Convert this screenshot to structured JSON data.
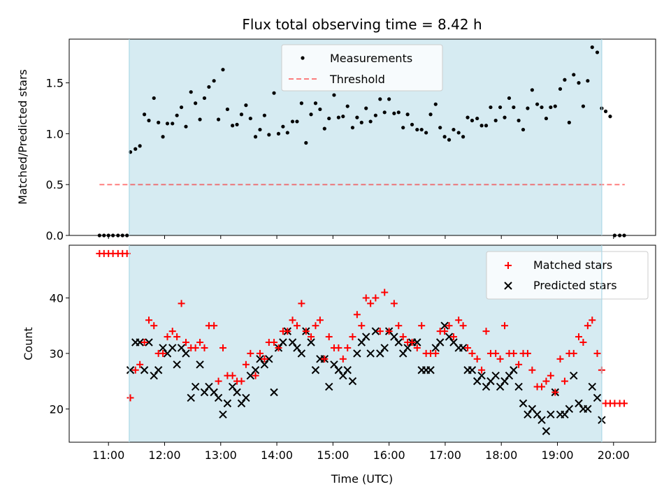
{
  "chart_data": [
    {
      "type": "scatter",
      "title": "Flux total observing time = 8.42 h",
      "ylabel": "Matched/Predicted stars",
      "xlabel": "",
      "xlim_hours": [
        10.3,
        20.75
      ],
      "ylim": [
        0,
        1.93
      ],
      "yticks": [
        0.0,
        0.5,
        1.0,
        1.5
      ],
      "ytick_labels": [
        "0.0",
        "0.5",
        "1.0",
        "1.5"
      ],
      "grid": false,
      "legend_position": "upper center",
      "observing_window_hours": [
        11.37,
        19.79
      ],
      "colors": {
        "window": "#add8e6",
        "measurements": "#000000",
        "threshold": "#ff0000"
      },
      "series": [
        {
          "name": "Measurements",
          "marker": "dot",
          "x_hours": [
            10.84,
            10.92,
            11.0,
            11.08,
            11.17,
            11.25,
            11.33,
            11.39,
            11.48,
            11.56,
            11.64,
            11.72,
            11.81,
            11.89,
            11.97,
            12.05,
            12.14,
            12.22,
            12.3,
            12.38,
            12.47,
            12.55,
            12.63,
            12.71,
            12.79,
            12.88,
            12.96,
            13.04,
            13.12,
            13.21,
            13.29,
            13.37,
            13.45,
            13.53,
            13.62,
            13.7,
            13.78,
            13.86,
            13.95,
            14.03,
            14.11,
            14.19,
            14.28,
            14.36,
            14.44,
            14.52,
            14.61,
            14.69,
            14.77,
            14.85,
            14.93,
            15.02,
            15.1,
            15.18,
            15.26,
            15.35,
            15.43,
            15.51,
            15.59,
            15.67,
            15.76,
            15.84,
            15.92,
            16.0,
            16.09,
            16.17,
            16.25,
            16.33,
            16.41,
            16.5,
            16.58,
            16.66,
            16.74,
            16.83,
            16.91,
            16.99,
            17.07,
            17.15,
            17.24,
            17.32,
            17.4,
            17.48,
            17.57,
            17.65,
            17.73,
            17.81,
            17.9,
            17.98,
            18.06,
            18.14,
            18.22,
            18.31,
            18.39,
            18.47,
            18.55,
            18.64,
            18.72,
            18.8,
            18.88,
            18.96,
            19.05,
            19.13,
            19.21,
            19.29,
            19.38,
            19.46,
            19.54,
            19.62,
            19.71,
            19.79,
            19.86,
            19.94,
            20.02,
            20.11,
            20.19
          ],
          "y": [
            0.0,
            0.0,
            0.0,
            0.0,
            0.0,
            0.0,
            0.0,
            0.82,
            0.85,
            0.88,
            1.19,
            1.13,
            1.35,
            1.11,
            0.97,
            1.1,
            1.1,
            1.18,
            1.26,
            1.07,
            1.41,
            1.3,
            1.14,
            1.35,
            1.46,
            1.52,
            1.14,
            1.63,
            1.24,
            1.08,
            1.09,
            1.19,
            1.28,
            1.15,
            0.97,
            1.04,
            1.18,
            0.99,
            1.4,
            1.0,
            1.07,
            1.01,
            1.12,
            1.12,
            1.3,
            0.91,
            1.19,
            1.3,
            1.24,
            1.05,
            1.15,
            1.38,
            1.16,
            1.17,
            1.27,
            1.06,
            1.16,
            1.11,
            1.25,
            1.12,
            1.18,
            1.34,
            1.21,
            1.34,
            1.2,
            1.21,
            1.06,
            1.19,
            1.09,
            1.04,
            1.04,
            1.01,
            1.19,
            1.29,
            1.06,
            0.97,
            0.94,
            1.04,
            1.01,
            0.97,
            1.16,
            1.13,
            1.15,
            1.08,
            1.08,
            1.26,
            1.13,
            1.26,
            1.16,
            1.35,
            1.26,
            1.13,
            1.04,
            1.25,
            1.43,
            1.29,
            1.26,
            1.15,
            1.26,
            1.27,
            1.44,
            1.53,
            1.11,
            1.58,
            1.5,
            1.27,
            1.52,
            1.85,
            1.8,
            1.25,
            1.22,
            1.17,
            0.0,
            0.0,
            0.0
          ]
        },
        {
          "name": "Threshold",
          "marker": "dashed-line",
          "x_hours": [
            10.84,
            20.2
          ],
          "y": [
            0.5,
            0.5
          ]
        }
      ]
    },
    {
      "type": "scatter",
      "title": "",
      "ylabel": "Count",
      "xlabel": "Time (UTC)",
      "xlim_hours": [
        10.3,
        20.75
      ],
      "xticks_hours": [
        11,
        12,
        13,
        14,
        15,
        16,
        17,
        18,
        19,
        20
      ],
      "xtick_labels": [
        "11:00",
        "12:00",
        "13:00",
        "14:00",
        "15:00",
        "16:00",
        "17:00",
        "18:00",
        "19:00",
        "20:00"
      ],
      "ylim": [
        14,
        49.5
      ],
      "yticks": [
        20,
        30,
        40
      ],
      "ytick_labels": [
        "20",
        "30",
        "40"
      ],
      "grid": false,
      "legend_position": "upper right",
      "observing_window_hours": [
        11.37,
        19.79
      ],
      "colors": {
        "window": "#add8e6",
        "matched": "#ff0000",
        "predicted": "#000000"
      },
      "series": [
        {
          "name": "Matched stars",
          "marker": "plus",
          "x_hours": [
            10.84,
            10.92,
            11.0,
            11.08,
            11.17,
            11.25,
            11.33,
            11.39,
            11.48,
            11.56,
            11.64,
            11.72,
            11.81,
            11.89,
            11.97,
            12.05,
            12.14,
            12.22,
            12.3,
            12.38,
            12.47,
            12.55,
            12.63,
            12.71,
            12.79,
            12.88,
            12.96,
            13.04,
            13.12,
            13.21,
            13.29,
            13.37,
            13.45,
            13.53,
            13.62,
            13.7,
            13.78,
            13.86,
            13.95,
            14.03,
            14.11,
            14.19,
            14.28,
            14.36,
            14.44,
            14.52,
            14.61,
            14.69,
            14.77,
            14.85,
            14.93,
            15.02,
            15.1,
            15.18,
            15.26,
            15.35,
            15.43,
            15.51,
            15.59,
            15.67,
            15.76,
            15.84,
            15.92,
            16.0,
            16.09,
            16.17,
            16.25,
            16.33,
            16.41,
            16.5,
            16.58,
            16.66,
            16.74,
            16.83,
            16.91,
            16.99,
            17.07,
            17.15,
            17.24,
            17.32,
            17.4,
            17.48,
            17.57,
            17.65,
            17.73,
            17.81,
            17.9,
            17.98,
            18.06,
            18.14,
            18.22,
            18.31,
            18.39,
            18.47,
            18.55,
            18.64,
            18.72,
            18.8,
            18.88,
            18.96,
            19.05,
            19.13,
            19.21,
            19.29,
            19.38,
            19.46,
            19.54,
            19.62,
            19.71,
            19.79,
            19.86,
            19.94,
            20.02,
            20.11,
            20.19
          ],
          "y": [
            48,
            48,
            48,
            48,
            48,
            48,
            48,
            22,
            27,
            28,
            32,
            36,
            35,
            30,
            30,
            33,
            34,
            33,
            39,
            32,
            31,
            31,
            32,
            31,
            35,
            35,
            25,
            31,
            26,
            26,
            25,
            25,
            28,
            30,
            26,
            30,
            29,
            32,
            32,
            31,
            34,
            34,
            36,
            35,
            39,
            34,
            33,
            35,
            36,
            29,
            33,
            31,
            31,
            29,
            31,
            33,
            37,
            35,
            40,
            39,
            40,
            34,
            41,
            34,
            39,
            35,
            33,
            32,
            32,
            31,
            35,
            30,
            30,
            30,
            34,
            34,
            35,
            33,
            36,
            35,
            31,
            30,
            29,
            27,
            34,
            30,
            30,
            29,
            35,
            30,
            30,
            28,
            30,
            30,
            27,
            24,
            24,
            25,
            26,
            23,
            29,
            25,
            30,
            30,
            33,
            32,
            35,
            36,
            30,
            27,
            21,
            21,
            21,
            21,
            21
          ]
        },
        {
          "name": "Predicted stars",
          "marker": "x",
          "x_hours": [
            11.39,
            11.48,
            11.56,
            11.64,
            11.72,
            11.81,
            11.89,
            11.97,
            12.05,
            12.14,
            12.22,
            12.3,
            12.38,
            12.47,
            12.55,
            12.63,
            12.71,
            12.79,
            12.88,
            12.96,
            13.04,
            13.12,
            13.21,
            13.29,
            13.37,
            13.45,
            13.53,
            13.62,
            13.7,
            13.78,
            13.86,
            13.95,
            14.03,
            14.11,
            14.19,
            14.28,
            14.36,
            14.44,
            14.52,
            14.61,
            14.69,
            14.77,
            14.85,
            14.93,
            15.02,
            15.1,
            15.18,
            15.26,
            15.35,
            15.43,
            15.51,
            15.59,
            15.67,
            15.76,
            15.84,
            15.92,
            16.0,
            16.09,
            16.17,
            16.25,
            16.33,
            16.41,
            16.5,
            16.58,
            16.66,
            16.74,
            16.83,
            16.91,
            16.99,
            17.07,
            17.15,
            17.24,
            17.32,
            17.4,
            17.48,
            17.57,
            17.65,
            17.73,
            17.81,
            17.9,
            17.98,
            18.06,
            18.14,
            18.22,
            18.31,
            18.39,
            18.47,
            18.55,
            18.64,
            18.72,
            18.8,
            18.88,
            18.96,
            19.05,
            19.13,
            19.21,
            19.29,
            19.38,
            19.46,
            19.54,
            19.62,
            19.71,
            19.79
          ],
          "y": [
            27,
            32,
            32,
            27,
            32,
            26,
            27,
            31,
            30,
            31,
            28,
            31,
            30,
            22,
            24,
            28,
            23,
            24,
            23,
            22,
            19,
            21,
            24,
            23,
            21,
            22,
            26,
            27,
            29,
            28,
            29,
            23,
            31,
            32,
            34,
            32,
            31,
            30,
            34,
            32,
            27,
            29,
            29,
            24,
            28,
            27,
            26,
            27,
            25,
            30,
            32,
            33,
            30,
            34,
            30,
            31,
            34,
            33,
            32,
            30,
            31,
            32,
            32,
            27,
            27,
            27,
            31,
            32,
            35,
            33,
            32,
            31,
            31,
            27,
            27,
            25,
            26,
            24,
            25,
            26,
            24,
            25,
            26,
            27,
            24,
            21,
            19,
            20,
            19,
            18,
            16,
            19,
            23,
            19,
            19,
            20,
            26,
            21,
            20,
            20,
            24,
            22,
            18
          ]
        }
      ]
    }
  ]
}
